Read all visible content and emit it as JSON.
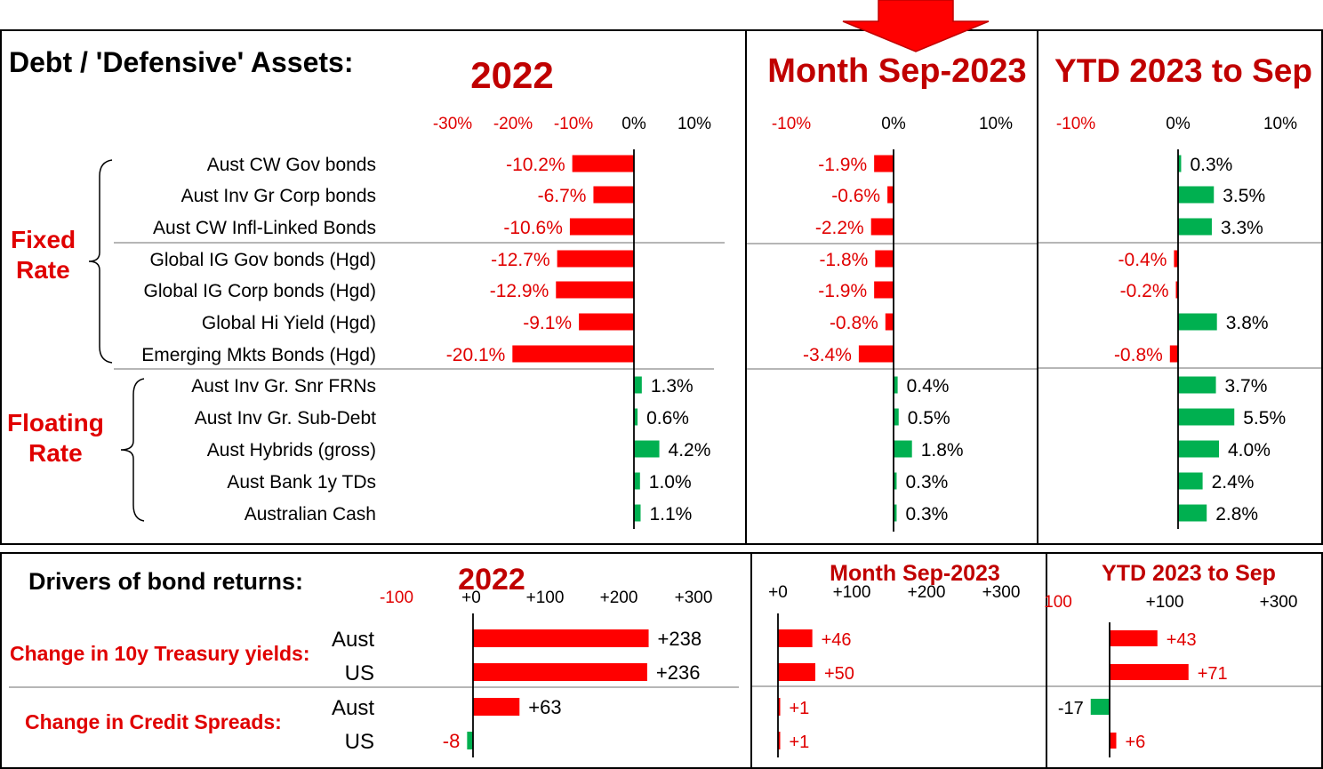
{
  "colors": {
    "neg": "#ff0000",
    "pos": "#00b050",
    "title": "#c00000",
    "red_text": "#e00000"
  },
  "top": {
    "title": "Debt / 'Defensive' Assets:",
    "groups": [
      {
        "label_lines": [
          "Fixed",
          "Rate"
        ]
      },
      {
        "label_lines": [
          "Floating",
          "Rate"
        ]
      }
    ],
    "categories": [
      "Aust CW Gov bonds",
      "Aust Inv Gr Corp bonds",
      "Aust CW Infl-Linked Bonds",
      "Global IG Gov bonds (Hgd)",
      "Global IG Corp bonds (Hgd)",
      "Global Hi Yield (Hgd)",
      "Emerging Mkts Bonds (Hgd)",
      "Aust Inv Gr. Snr FRNs",
      "Aust Inv Gr. Sub-Debt",
      "Aust Hybrids (gross)",
      "Aust Bank 1y TDs",
      "Australian Cash"
    ]
  },
  "bottom": {
    "title": "Drivers of bond returns:",
    "rows": [
      {
        "group": "Change in 10y Treasury yields:",
        "label": "Aust"
      },
      {
        "group": "Change in 10y Treasury yields:",
        "label": "US"
      },
      {
        "group": "Change in Credit Spreads:",
        "label": "Aust"
      },
      {
        "group": "Change in Credit Spreads:",
        "label": "US"
      }
    ]
  },
  "chart_data": [
    {
      "type": "bar",
      "orientation": "horizontal",
      "title": "2022",
      "unit": "%",
      "xlim": [
        -30,
        10
      ],
      "ticks": [
        "-30%",
        "-20%",
        "-10%",
        "0%",
        "10%"
      ],
      "values": [
        -10.2,
        -6.7,
        -10.6,
        -12.7,
        -12.9,
        -9.1,
        -20.1,
        1.3,
        0.6,
        4.2,
        1.0,
        1.1
      ],
      "labels": [
        "-10.2%",
        "-6.7%",
        "-10.6%",
        "-12.7%",
        "-12.9%",
        "-9.1%",
        "-20.1%",
        "1.3%",
        "0.6%",
        "4.2%",
        "1.0%",
        "1.1%"
      ]
    },
    {
      "type": "bar",
      "orientation": "horizontal",
      "title": "Month Sep-2023",
      "unit": "%",
      "xlim": [
        -10,
        10
      ],
      "ticks": [
        "-10%",
        "0%",
        "10%"
      ],
      "values": [
        -1.9,
        -0.6,
        -2.2,
        -1.8,
        -1.9,
        -0.8,
        -3.4,
        0.4,
        0.5,
        1.8,
        0.3,
        0.3
      ],
      "labels": [
        "-1.9%",
        "-0.6%",
        "-2.2%",
        "-1.8%",
        "-1.9%",
        "-0.8%",
        "-3.4%",
        "0.4%",
        "0.5%",
        "1.8%",
        "0.3%",
        "0.3%"
      ]
    },
    {
      "type": "bar",
      "orientation": "horizontal",
      "title": "YTD 2023 to Sep",
      "unit": "%",
      "xlim": [
        -10,
        10
      ],
      "ticks": [
        "-10%",
        "0%",
        "10%"
      ],
      "values": [
        0.3,
        3.5,
        3.3,
        -0.4,
        -0.2,
        3.8,
        -0.8,
        3.7,
        5.5,
        4.0,
        2.4,
        2.8
      ],
      "labels": [
        "0.3%",
        "3.5%",
        "3.3%",
        "-0.4%",
        "-0.2%",
        "3.8%",
        "-0.8%",
        "3.7%",
        "5.5%",
        "4.0%",
        "2.4%",
        "2.8%"
      ]
    },
    {
      "type": "bar",
      "orientation": "horizontal",
      "title": "2022",
      "unit": "bp",
      "xlim": [
        -100,
        300
      ],
      "ticks": [
        "-100",
        "+0",
        "+100",
        "+200",
        "+300"
      ],
      "values": [
        238,
        236,
        63,
        -8
      ],
      "labels": [
        "+238",
        "+236",
        "+63",
        "-8"
      ]
    },
    {
      "type": "bar",
      "orientation": "horizontal",
      "title": "Month Sep-2023",
      "unit": "bp",
      "xlim": [
        0,
        300
      ],
      "ticks": [
        "+0",
        "+100",
        "+200",
        "+300"
      ],
      "values": [
        46,
        50,
        1,
        1
      ],
      "labels": [
        "+46",
        "+50",
        "+1",
        "+1"
      ]
    },
    {
      "type": "bar",
      "orientation": "horizontal",
      "title": "YTD 2023 to Sep",
      "unit": "bp",
      "xlim": [
        -100,
        300
      ],
      "ticks": [
        "100",
        "+100",
        "+300"
      ],
      "values": [
        43,
        71,
        -17,
        6
      ],
      "labels": [
        "+43",
        "+71",
        "-17",
        "+6"
      ]
    }
  ]
}
